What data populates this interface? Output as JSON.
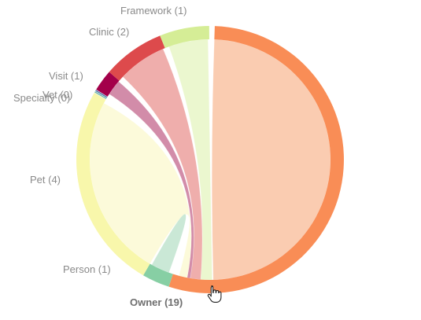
{
  "chart_data": {
    "type": "chord",
    "groups": [
      {
        "name": "Owner",
        "count": 19,
        "label": "Owner (19)",
        "color": "#f98d56",
        "hovered": true
      },
      {
        "name": "Person",
        "count": 1,
        "label": "Person (1)",
        "color": "#87cfa4"
      },
      {
        "name": "Pet",
        "count": 4,
        "label": "Pet (4)",
        "color": "#f8f7ab"
      },
      {
        "name": "Specialty",
        "count": 0,
        "label": "Specialty (0)",
        "color": "#6fb6a8"
      },
      {
        "name": "Vet",
        "count": 0,
        "label": "Vet (0)",
        "color": "#4f79a8"
      },
      {
        "name": "Visit",
        "count": 1,
        "label": "Visit (1)",
        "color": "#a3004a"
      },
      {
        "name": "Clinic",
        "count": 2,
        "label": "Clinic (2)",
        "color": "#dd4a4c"
      },
      {
        "name": "Framework",
        "count": 1,
        "label": "Framework (1)",
        "color": "#d5ed96"
      }
    ],
    "chords": [
      {
        "source": "Owner",
        "target": "Framework",
        "color": "#e9f6ca"
      },
      {
        "source": "Owner",
        "target": "Clinic",
        "color": "#eda5a3"
      },
      {
        "source": "Owner",
        "target": "Visit",
        "color": "#cd7fa0"
      },
      {
        "source": "Owner",
        "target": "Pet",
        "color": "#fcf9d6"
      },
      {
        "source": "Owner",
        "target": "Owner",
        "color": "#f9c6a8"
      },
      {
        "source": "Person",
        "target": "Person",
        "color": "#c4e6d2"
      }
    ]
  },
  "cursor": "pointer-hand"
}
